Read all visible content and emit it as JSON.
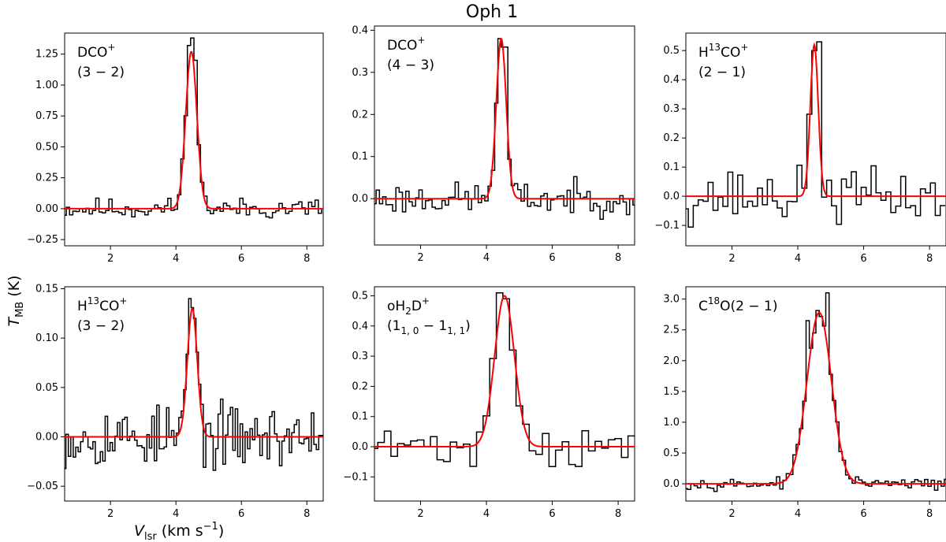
{
  "figure": {
    "title": "Oph 1",
    "ylabel": "T",
    "ylabel_sub": "MB",
    "ylabel_unit": " (K)",
    "xlabel": "V",
    "xlabel_sub": "lsr",
    "xlabel_unit": " (km s",
    "xlabel_sup": "−1",
    "xlabel_close": ")",
    "colors": {
      "observed": "#000000",
      "model": "#ff0000"
    }
  },
  "chart_data": [
    {
      "type": "line",
      "panel": "DCO+ (3-2)",
      "label_line1": {
        "main": "DCO",
        "sup": "+"
      },
      "label_line2": {
        "main": "(3 − 2)"
      },
      "xlim": [
        0.6,
        8.5
      ],
      "ylim": [
        -0.3,
        1.42
      ],
      "xticks": [
        2,
        4,
        6,
        8
      ],
      "yticks": [
        -0.25,
        0.0,
        0.25,
        0.5,
        0.75,
        1.0,
        1.25
      ],
      "ytick_labels": [
        "−0.25",
        "0.00",
        "0.25",
        "0.50",
        "0.75",
        "1.00",
        "1.25"
      ],
      "xtick_labels": [
        "2",
        "4",
        "6",
        "8"
      ],
      "model": {
        "peak": 1.27,
        "center": 4.47,
        "sigma": 0.17
      },
      "observed": {
        "channel_width": 0.1,
        "x_start": 0.6,
        "noise": 0.05,
        "seed": 11,
        "peaks": [
          {
            "x": 4.5,
            "y": 1.38
          },
          {
            "x": 4.4,
            "y": 1.32
          },
          {
            "x": 4.6,
            "y": 1.2
          }
        ]
      },
      "series": [
        {
          "name": "observed",
          "style": "step"
        },
        {
          "name": "model fit",
          "style": "line"
        }
      ]
    },
    {
      "type": "line",
      "panel": "DCO+ (4-3)",
      "label_line1": {
        "main": "DCO",
        "sup": "+"
      },
      "label_line2": {
        "main": "(4 − 3)"
      },
      "xlim": [
        0.6,
        8.5
      ],
      "ylim": [
        -0.11,
        0.41
      ],
      "xticks": [
        2,
        4,
        6,
        8
      ],
      "yticks": [
        0.0,
        0.1,
        0.2,
        0.3,
        0.4
      ],
      "ytick_labels": [
        "0.0",
        "0.1",
        "0.2",
        "0.3",
        "0.4"
      ],
      "xtick_labels": [
        "2",
        "4",
        "6",
        "8"
      ],
      "model": {
        "peak": 0.38,
        "center": 4.45,
        "sigma": 0.15
      },
      "observed": {
        "channel_width": 0.1,
        "x_start": 0.6,
        "noise": 0.022,
        "seed": 23,
        "peaks": [
          {
            "x": 4.45,
            "y": 0.38
          },
          {
            "x": 4.55,
            "y": 0.36
          }
        ]
      },
      "series": [
        {
          "name": "observed",
          "style": "step"
        },
        {
          "name": "model fit",
          "style": "line"
        }
      ]
    },
    {
      "type": "line",
      "panel": "H13CO+ (2-1)",
      "label_line1": {
        "main": "H",
        "sup_mid": "13",
        "main2": "CO",
        "sup": "+"
      },
      "label_line2": {
        "main": "(2 − 1)"
      },
      "xlim": [
        0.6,
        8.5
      ],
      "ylim": [
        -0.17,
        0.56
      ],
      "xticks": [
        2,
        4,
        6,
        8
      ],
      "yticks": [
        -0.1,
        0.0,
        0.1,
        0.2,
        0.3,
        0.4,
        0.5
      ],
      "ytick_labels": [
        "−0.1",
        "0.0",
        "0.1",
        "0.2",
        "0.3",
        "0.4",
        "0.5"
      ],
      "xtick_labels": [
        "2",
        "4",
        "6",
        "8"
      ],
      "model": {
        "peak": 0.52,
        "center": 4.5,
        "sigma": 0.12
      },
      "observed": {
        "channel_width": 0.15,
        "x_start": 0.6,
        "noise": 0.055,
        "seed": 37,
        "peaks": [
          {
            "x": 4.6,
            "y": 0.53
          },
          {
            "x": 4.45,
            "y": 0.5
          }
        ]
      },
      "series": [
        {
          "name": "observed",
          "style": "step"
        },
        {
          "name": "model fit",
          "style": "line"
        }
      ]
    },
    {
      "type": "line",
      "panel": "H13CO+ (3-2)",
      "label_line1": {
        "main": "H",
        "sup_mid": "13",
        "main2": "CO",
        "sup": "+"
      },
      "label_line2": {
        "main": "(3 − 2)"
      },
      "xlim": [
        0.6,
        8.5
      ],
      "ylim": [
        -0.065,
        0.152
      ],
      "xticks": [
        2,
        4,
        6,
        8
      ],
      "yticks": [
        -0.05,
        0.0,
        0.05,
        0.1,
        0.15
      ],
      "ytick_labels": [
        "−0.05",
        "0.00",
        "0.05",
        "0.10",
        "0.15"
      ],
      "xtick_labels": [
        "2",
        "4",
        "6",
        "8"
      ],
      "model": {
        "peak": 0.13,
        "center": 4.5,
        "sigma": 0.15
      },
      "observed": {
        "channel_width": 0.075,
        "x_start": 0.6,
        "noise": 0.018,
        "seed": 53,
        "peaks": [
          {
            "x": 4.45,
            "y": 0.14
          },
          {
            "x": 4.55,
            "y": 0.12
          }
        ]
      },
      "series": [
        {
          "name": "observed",
          "style": "step"
        },
        {
          "name": "model fit",
          "style": "line"
        }
      ]
    },
    {
      "type": "line",
      "panel": "oH2D+ (1_1,0 - 1_1,1)",
      "label_line1": {
        "main": "oH",
        "sub_mid": "2",
        "main2": "D",
        "sup": "+"
      },
      "label_line2": {
        "main": "(1",
        "sub1": "1, 0",
        "mid": " − 1",
        "sub2": "1, 1",
        "end": ")"
      },
      "xlim": [
        0.6,
        8.5
      ],
      "ylim": [
        -0.18,
        0.53
      ],
      "xticks": [
        2,
        4,
        6,
        8
      ],
      "yticks": [
        -0.1,
        0.0,
        0.1,
        0.2,
        0.3,
        0.4,
        0.5
      ],
      "ytick_labels": [
        "−0.1",
        "0.0",
        "0.1",
        "0.2",
        "0.3",
        "0.4",
        "0.5"
      ],
      "xtick_labels": [
        "2",
        "4",
        "6",
        "8"
      ],
      "model": {
        "peak": 0.5,
        "center": 4.55,
        "sigma": 0.3
      },
      "observed": {
        "channel_width": 0.2,
        "x_start": 0.6,
        "noise": 0.04,
        "seed": 71,
        "peaks": [
          {
            "x": 4.5,
            "y": 0.51
          },
          {
            "x": 4.7,
            "y": 0.49
          }
        ]
      },
      "series": [
        {
          "name": "observed",
          "style": "step"
        },
        {
          "name": "model fit",
          "style": "line"
        }
      ]
    },
    {
      "type": "line",
      "panel": "C18O (2-1)",
      "label_line1": {
        "main": "C",
        "sup_mid": "18",
        "main2": "O(2 − 1)"
      },
      "label_line2": {
        "main": ""
      },
      "xlim": [
        0.6,
        8.5
      ],
      "ylim": [
        -0.28,
        3.2
      ],
      "xticks": [
        2,
        4,
        6,
        8
      ],
      "yticks": [
        0.0,
        0.5,
        1.0,
        1.5,
        2.0,
        2.5,
        3.0
      ],
      "ytick_labels": [
        "0.0",
        "0.5",
        "1.0",
        "1.5",
        "2.0",
        "2.5",
        "3.0"
      ],
      "xtick_labels": [
        "2",
        "4",
        "6",
        "8"
      ],
      "model": {
        "peak": 2.78,
        "center": 4.65,
        "sigma": 0.37
      },
      "observed": {
        "channel_width": 0.1,
        "x_start": 0.6,
        "noise": 0.05,
        "seed": 97,
        "peaks": [
          {
            "x": 4.9,
            "y": 3.1
          },
          {
            "x": 4.3,
            "y": 2.65
          },
          {
            "x": 4.5,
            "y": 2.45
          }
        ]
      },
      "series": [
        {
          "name": "observed",
          "style": "step"
        },
        {
          "name": "model fit",
          "style": "line"
        }
      ]
    }
  ]
}
